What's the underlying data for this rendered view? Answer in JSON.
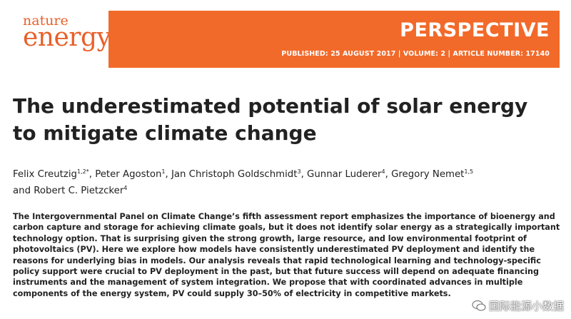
{
  "header": {
    "journal_line1": "nature",
    "journal_line2": "energy",
    "article_type": "PERSPECTIVE",
    "meta": "PUBLISHED: 25 AUGUST 2017 | VOLUME: 2 | ARTICLE NUMBER: 17140"
  },
  "title": "The underestimated potential of solar energy to mitigate climate change",
  "authors": [
    {
      "name": "Felix Creutzig",
      "sup": "1,2*",
      "after": ","
    },
    {
      "name": "Peter Agoston",
      "sup": "1",
      "after": ","
    },
    {
      "name": "Jan Christoph Goldschmidt",
      "sup": "3",
      "after": ","
    },
    {
      "name": "Gunnar Luderer",
      "sup": "4",
      "after": ","
    },
    {
      "name": "Gregory Nemet",
      "sup": "1,5"
    },
    {
      "prefix": "and",
      "name": "Robert C. Pietzcker",
      "sup": "4"
    }
  ],
  "abstract": "The Intergovernmental Panel on Climate Change’s fifth assessment report emphasizes the importance of bioenergy and carbon capture and storage for achieving climate goals, but it does not identify solar energy as a strategically important technology option. That is surprising given the strong growth, large resource, and low environmental footprint of photovoltaics (PV). Here we explore how models have consistently underestimated PV deployment and identify the reasons for underlying bias in models. Our analysis reveals that rapid technological learning and technology-specific policy support were crucial to PV deployment in the past, but that future success will depend on adequate financing instruments and the management of system integration. We propose that with coordinated advances in multiple components of the energy system, PV could supply 30–50% of electricity in competitive markets.",
  "watermark": "国际能源小数据"
}
